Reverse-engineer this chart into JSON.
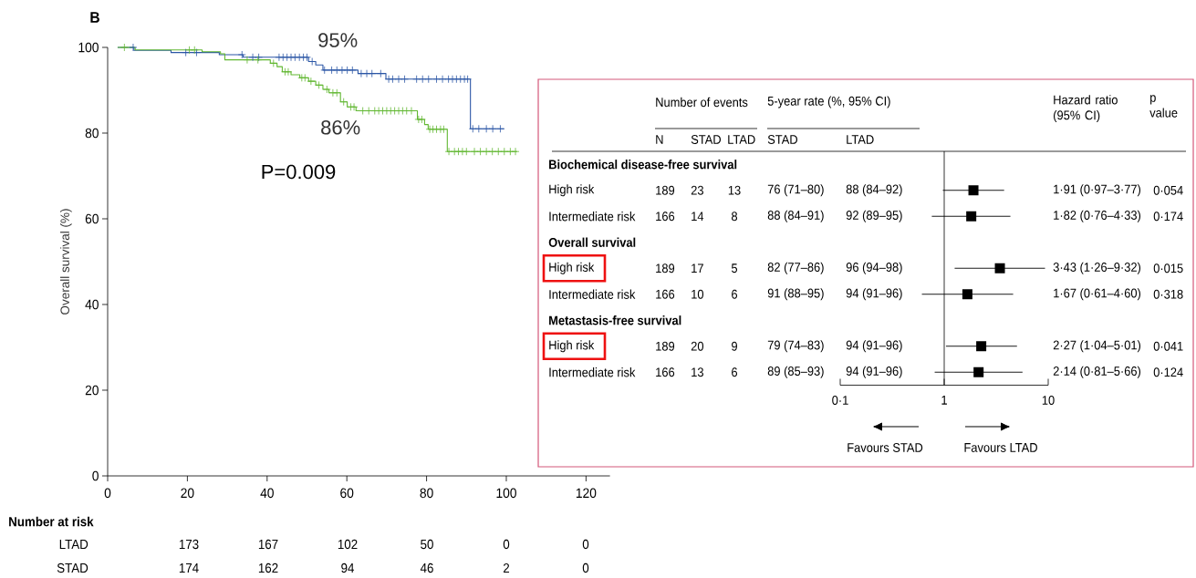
{
  "chart_data": [
    {
      "type": "step",
      "ylabel": "Overall survival (%)",
      "xlim": [
        0,
        126
      ],
      "xticks": [
        0,
        20,
        40,
        60,
        80,
        100,
        120
      ],
      "ylim": [
        0,
        100
      ],
      "yticks": [
        0,
        20,
        40,
        60,
        80,
        100
      ],
      "annotations": [
        "B",
        {
          "text": "95%",
          "x": 60,
          "y": 95
        },
        {
          "text": "86%",
          "x": 60,
          "y": 86
        },
        "P=0.009"
      ],
      "series": [
        {
          "color": "#2c57a6",
          "x": [
            2.5,
            6.6,
            15.9,
            28,
            34,
            50.4,
            52.2,
            54,
            62.8,
            69.8,
            91,
            99.5
          ],
          "values": [
            100,
            99.3,
            98.8,
            98.3,
            97.7,
            96.7,
            95.9,
            94.7,
            93.9,
            92.6,
            81,
            81
          ]
        },
        {
          "color": "#62b832",
          "x": [
            2.5,
            6.9,
            23.7,
            28.3,
            29.4,
            40.8,
            42.5,
            43.8,
            46,
            48.2,
            50.4,
            52.2,
            54,
            55.5,
            58.4,
            60.1,
            62.3,
            77.7,
            79.5,
            80.4,
            85.2,
            102.7
          ],
          "values": [
            100,
            99.4,
            99,
            98.5,
            97.1,
            96.3,
            95.5,
            94.3,
            93.6,
            92.9,
            92.1,
            91.2,
            90.2,
            89.4,
            87.3,
            86.1,
            85.2,
            83.2,
            82,
            80.9,
            75.7,
            75.7
          ]
        },
        {
          "type": "scatter",
          "marker": "cross",
          "color": "#2c57a6",
          "x": [
            6.4,
            19.6,
            22.3,
            33.7,
            36.4,
            37.9,
            43,
            44,
            45,
            46,
            47,
            48.1,
            49.1,
            50,
            51.3,
            54.4,
            56.2,
            57.5,
            58.8,
            60.1,
            61.4,
            63.6,
            65,
            66.3,
            68.5,
            70.5,
            71.5,
            73,
            74.5,
            77.5,
            79,
            80.5,
            82.5,
            84,
            85.5,
            86.5,
            87.5,
            88.5,
            89.5,
            90.3,
            91.6,
            93.1,
            95,
            96.6,
            98.5
          ],
          "values": [
            100,
            98.8,
            98.8,
            98.3,
            97.7,
            97.7,
            97.7,
            97.7,
            97.7,
            97.7,
            97.7,
            97.7,
            97.7,
            97.7,
            96.7,
            94.7,
            94.7,
            94.7,
            94.7,
            94.7,
            94.7,
            93.9,
            93.9,
            93.9,
            93.9,
            92.6,
            92.6,
            92.6,
            92.6,
            92.6,
            92.6,
            92.6,
            92.6,
            92.6,
            92.6,
            92.6,
            92.6,
            92.6,
            92.6,
            92.6,
            81,
            81,
            81,
            81,
            81
          ]
        },
        {
          "type": "scatter",
          "marker": "cross",
          "color": "#62b832",
          "x": [
            4.2,
            20.5,
            21.8,
            35,
            37.7,
            41.6,
            44.5,
            45.3,
            48.7,
            49.5,
            51,
            53,
            55,
            56.5,
            57.5,
            59.2,
            61,
            61.8,
            64,
            65.5,
            67,
            68,
            69,
            70,
            71,
            72,
            73,
            74,
            75,
            76.2,
            78,
            78.8,
            80.8,
            81.6,
            82.5,
            83.5,
            84.3,
            85.6,
            87,
            88,
            89,
            90,
            92,
            93.5,
            95,
            96.5,
            98,
            99.5,
            101,
            102.3
          ],
          "values": [
            100,
            99.4,
            99.4,
            97.1,
            97.1,
            96.3,
            94.3,
            94.3,
            92.9,
            92.9,
            92.1,
            91.2,
            90.2,
            89.4,
            89.4,
            87.3,
            86.1,
            86.1,
            85.2,
            85.2,
            85.2,
            85.2,
            85.2,
            85.2,
            85.2,
            85.2,
            85.2,
            85.2,
            85.2,
            85.2,
            83.2,
            83.2,
            80.9,
            80.9,
            80.9,
            80.9,
            80.9,
            75.7,
            75.7,
            75.7,
            75.7,
            75.7,
            75.7,
            75.7,
            75.7,
            75.7,
            75.7,
            75.7,
            75.7,
            75.7
          ]
        }
      ]
    },
    {
      "type": "other",
      "title": "Number at risk",
      "annotations": [
        "LTAD",
        "173",
        "167",
        "102",
        "50",
        "0",
        "0",
        "STAD",
        "174",
        "162",
        "94",
        "46",
        "2",
        "0"
      ]
    },
    {
      "type": "other",
      "annotations": [
        "Number of events",
        "5-year rate (%, 95% CI)",
        "Hazard ratio (95% CI)",
        "p value",
        "N",
        "STAD",
        "LTAD",
        "STAD",
        "LTAD",
        "Biochemical disease-free survival",
        "High risk",
        "189",
        "23",
        "13",
        "76 (71–80)",
        "88 (84–92)",
        "1·91 (0·97–3·77)",
        "0·054",
        "Intermediate risk",
        "166",
        "14",
        "8",
        "88 (84–91)",
        "92 (89–95)",
        "1·82 (0·76–4·33)",
        "0·174",
        "Overall survival",
        "High risk",
        "189",
        "17",
        "5",
        "82 (77–86)",
        "96 (94–98)",
        "3·43 (1·26–9·32)",
        "0·015",
        "Intermediate risk",
        "166",
        "10",
        "6",
        "91 (88–95)",
        "94 (91–96)",
        "1·67 (0·61–4·60)",
        "0·318",
        "Metastasis-free survival",
        "High risk",
        "189",
        "20",
        "9",
        "79 (74–83)",
        "94 (91–96)",
        "2·27 (1·04–5·01)",
        "0·041",
        "Intermediate risk",
        "166",
        "13",
        "6",
        "89 (85–93)",
        "94 (91–96)",
        "2·14 (0·81–5·66)",
        "0·124"
      ]
    },
    {
      "type": "scatter",
      "orientation": "horizontal",
      "log": "x",
      "xlim": [
        0.1,
        10
      ],
      "xticks": [
        {
          "value": 0.1,
          "label": "0·1"
        },
        1,
        10
      ],
      "categories": [
        null,
        null,
        null,
        null,
        null,
        null,
        null,
        null,
        null
      ],
      "marker": "square",
      "color": "#000000",
      "values": [
        null,
        1.91,
        1.82,
        null,
        3.43,
        1.67,
        null,
        2.27,
        2.14
      ],
      "errors": [
        null,
        [
          0.97,
          3.77
        ],
        [
          0.76,
          4.33
        ],
        null,
        [
          1.26,
          9.32
        ],
        [
          0.61,
          4.6
        ],
        null,
        [
          1.04,
          5.01
        ],
        [
          0.81,
          5.66
        ]
      ],
      "ref_lines": [
        {
          "axis": "x",
          "value": 1
        }
      ],
      "annotations": [
        "Favours STAD",
        "Favours LTAD"
      ]
    }
  ]
}
